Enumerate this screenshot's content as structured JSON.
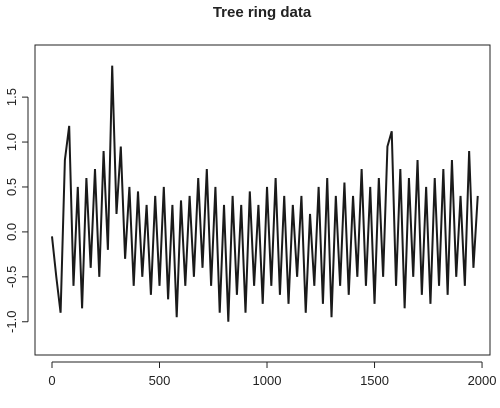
{
  "chart_data": {
    "type": "line",
    "title": "Tree ring data",
    "x": [
      0,
      20,
      40,
      60,
      80,
      100,
      120,
      140,
      160,
      180,
      200,
      220,
      240,
      260,
      280,
      300,
      320,
      340,
      360,
      380,
      400,
      420,
      440,
      460,
      480,
      500,
      520,
      540,
      560,
      580,
      600,
      620,
      640,
      660,
      680,
      700,
      720,
      740,
      760,
      780,
      800,
      820,
      840,
      860,
      880,
      900,
      920,
      940,
      960,
      980,
      1000,
      1020,
      1040,
      1060,
      1080,
      1100,
      1120,
      1140,
      1160,
      1180,
      1200,
      1220,
      1240,
      1260,
      1280,
      1300,
      1320,
      1340,
      1360,
      1380,
      1400,
      1420,
      1440,
      1460,
      1480,
      1500,
      1520,
      1540,
      1560,
      1580,
      1600,
      1620,
      1640,
      1660,
      1680,
      1700,
      1720,
      1740,
      1760,
      1780,
      1800,
      1820,
      1840,
      1860,
      1880,
      1900,
      1920,
      1940,
      1960,
      1980
    ],
    "series": [
      {
        "color": "#1a1a1a",
        "values": [
          -0.05,
          -0.5,
          -0.9,
          0.8,
          1.18,
          -0.6,
          0.5,
          -0.85,
          0.6,
          -0.4,
          0.7,
          -0.5,
          0.9,
          -0.2,
          1.85,
          0.2,
          0.95,
          -0.3,
          0.5,
          -0.6,
          0.45,
          -0.5,
          0.3,
          -0.7,
          0.4,
          -0.6,
          0.5,
          -0.75,
          0.3,
          -0.95,
          0.35,
          -0.6,
          0.4,
          -0.5,
          0.6,
          -0.4,
          0.7,
          -0.6,
          0.5,
          -0.9,
          0.3,
          -1.0,
          0.4,
          -0.7,
          0.3,
          -0.9,
          0.45,
          -0.6,
          0.3,
          -0.8,
          0.5,
          -0.6,
          0.6,
          -0.7,
          0.4,
          -0.8,
          0.3,
          -0.5,
          0.4,
          -0.9,
          0.2,
          -0.6,
          0.5,
          -0.8,
          0.6,
          -0.95,
          0.4,
          -0.6,
          0.55,
          -0.7,
          0.4,
          -0.5,
          0.7,
          -0.6,
          0.5,
          -0.8,
          0.6,
          -0.5,
          0.95,
          1.12,
          -0.6,
          0.7,
          -0.85,
          0.6,
          -0.5,
          0.8,
          -0.7,
          0.5,
          -0.8,
          0.6,
          -0.6,
          0.7,
          -0.7,
          0.8,
          -0.5,
          0.4,
          -0.6,
          0.9,
          -0.4,
          0.4
        ]
      }
    ],
    "xlim": [
      -79,
      2037
    ],
    "ylim": [
      -1.37,
      2.08
    ],
    "xticks": [
      0,
      500,
      1000,
      1500,
      2000
    ],
    "yticks": [
      {
        "value": -1,
        "label": "-1.0"
      },
      -0.5,
      {
        "value": 0,
        "label": "0.0"
      },
      0.5,
      {
        "value": 1,
        "label": "1.0"
      },
      1.5
    ]
  }
}
